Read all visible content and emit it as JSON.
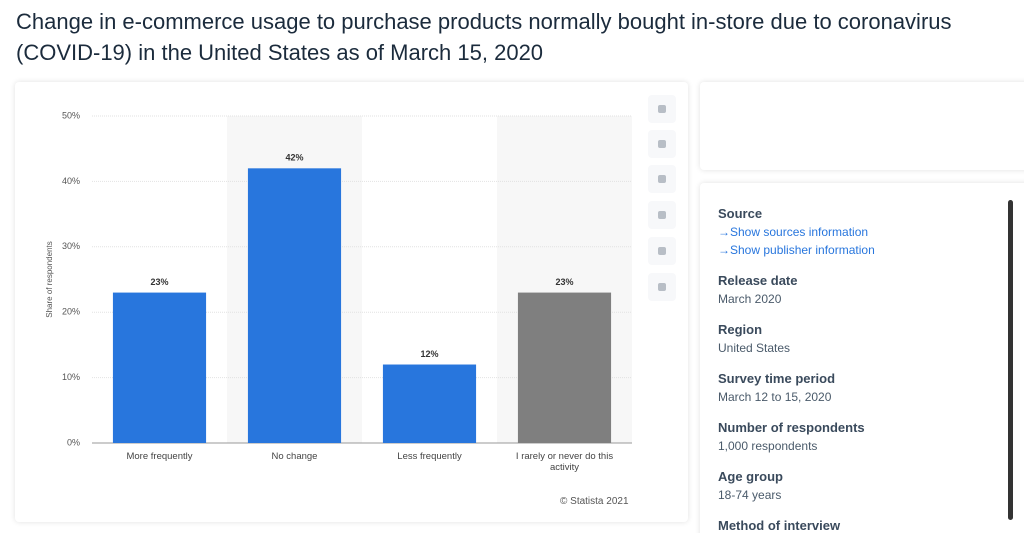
{
  "title": "Change in e-commerce usage to purchase products normally bought in-store due to coronavirus (COVID-19) in the United States as of March 15, 2020",
  "chart_data": {
    "type": "bar",
    "categories": [
      "More frequently",
      "No change",
      "Less frequently",
      "I rarely or never do this activity"
    ],
    "values": [
      23,
      42,
      12,
      23
    ],
    "value_labels": [
      "23%",
      "42%",
      "12%",
      "23%"
    ],
    "colors": [
      "#2876dd",
      "#2876dd",
      "#2876dd",
      "#7f7f7f"
    ],
    "y_label": "Share of respondents",
    "ylim": [
      0,
      50
    ],
    "yticks": [
      {
        "value": 0,
        "label": "0%"
      },
      {
        "value": 10,
        "label": "10%"
      },
      {
        "value": 20,
        "label": "20%"
      },
      {
        "value": 30,
        "label": "30%"
      },
      {
        "value": 40,
        "label": "40%"
      },
      {
        "value": 50,
        "label": "50%"
      }
    ],
    "grid": true,
    "credit": "© Statista 2021"
  },
  "details": [
    {
      "heading": "Source",
      "links": [
        "Show sources information",
        "Show publisher information"
      ]
    },
    {
      "heading": "Release date",
      "text": "March 2020"
    },
    {
      "heading": "Region",
      "text": "United States"
    },
    {
      "heading": "Survey time period",
      "text": "March 12 to 15, 2020"
    },
    {
      "heading": "Number of respondents",
      "text": "1,000 respondents"
    },
    {
      "heading": "Age group",
      "text": "18-74 years"
    },
    {
      "heading": "Method of interview"
    }
  ]
}
